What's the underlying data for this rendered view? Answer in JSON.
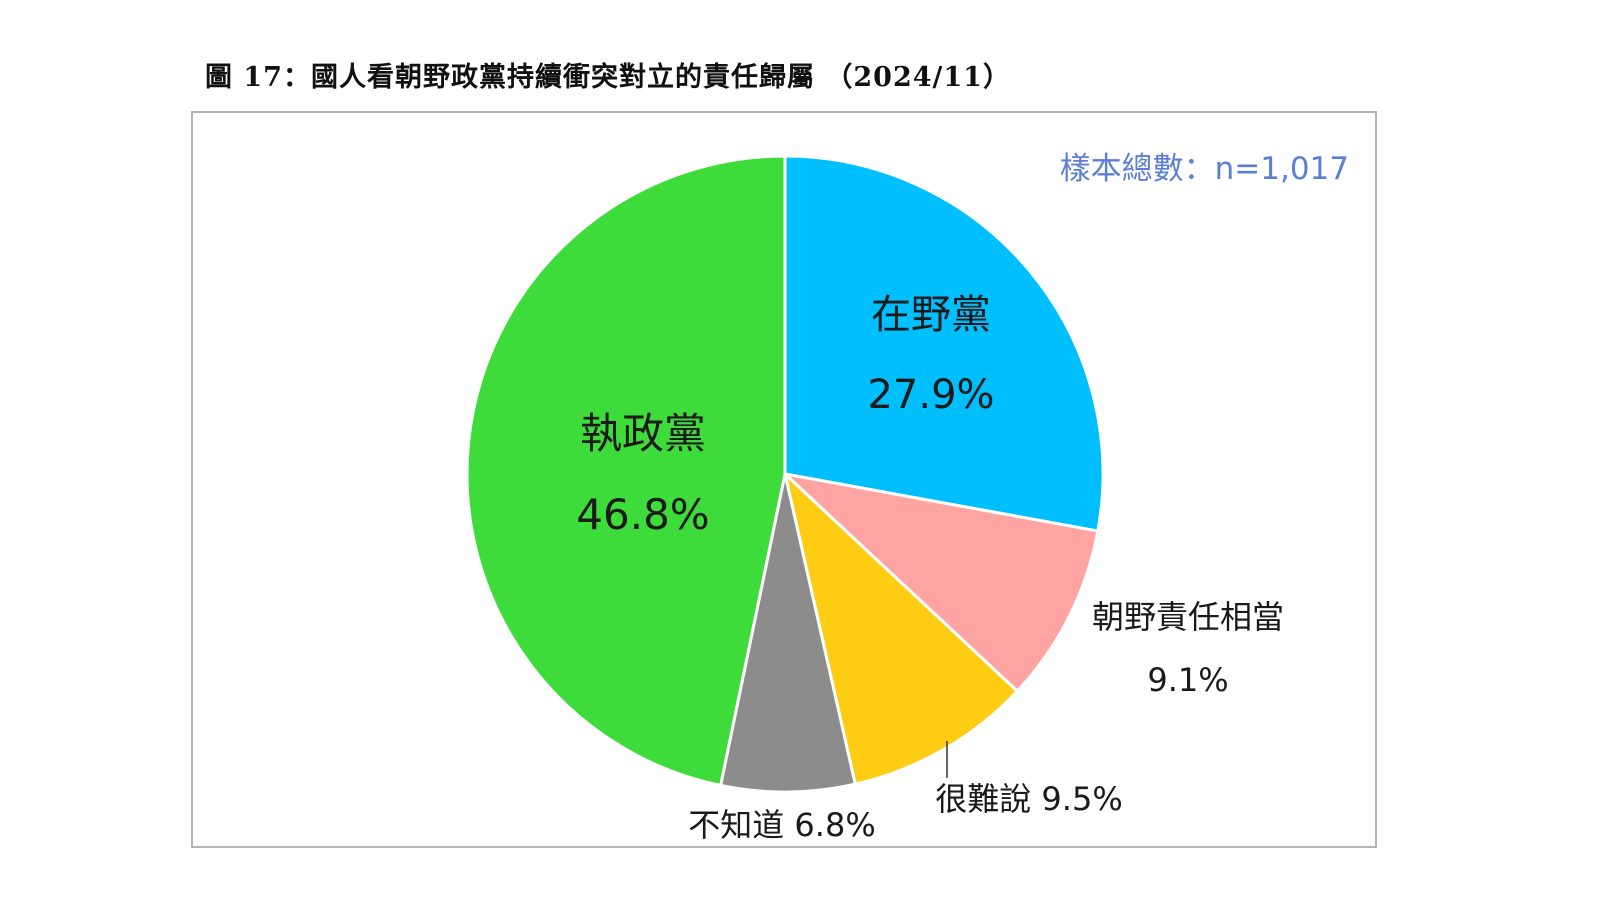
{
  "figure": {
    "title": "圖 17：國人看朝野政黨持續衝突對立的責任歸屬 （2024/11）",
    "sample_size": "樣本總數：n=1,017"
  },
  "chart_data": {
    "type": "pie",
    "title": "圖 17：國人看朝野政黨持續衝突對立的責任歸屬 （2024/11）",
    "annotation": "樣本總數：n=1,017",
    "start_angle_deg": 0,
    "direction": "clockwise",
    "slices": [
      {
        "name": "在野黨",
        "value": 27.9,
        "label": "27.9%",
        "color": "#00BFFF"
      },
      {
        "name": "朝野責任相當",
        "value": 9.1,
        "label": "9.1%",
        "color": "#FFA3A3"
      },
      {
        "name": "很難說",
        "value": 9.5,
        "label": "9.5%",
        "color": "#FFCC14"
      },
      {
        "name": "不知道",
        "value": 6.8,
        "label": "6.8%",
        "color": "#8C8C8C"
      },
      {
        "name": "執政黨",
        "value": 46.8,
        "label": "46.8%",
        "color": "#3DDC3A"
      }
    ]
  }
}
